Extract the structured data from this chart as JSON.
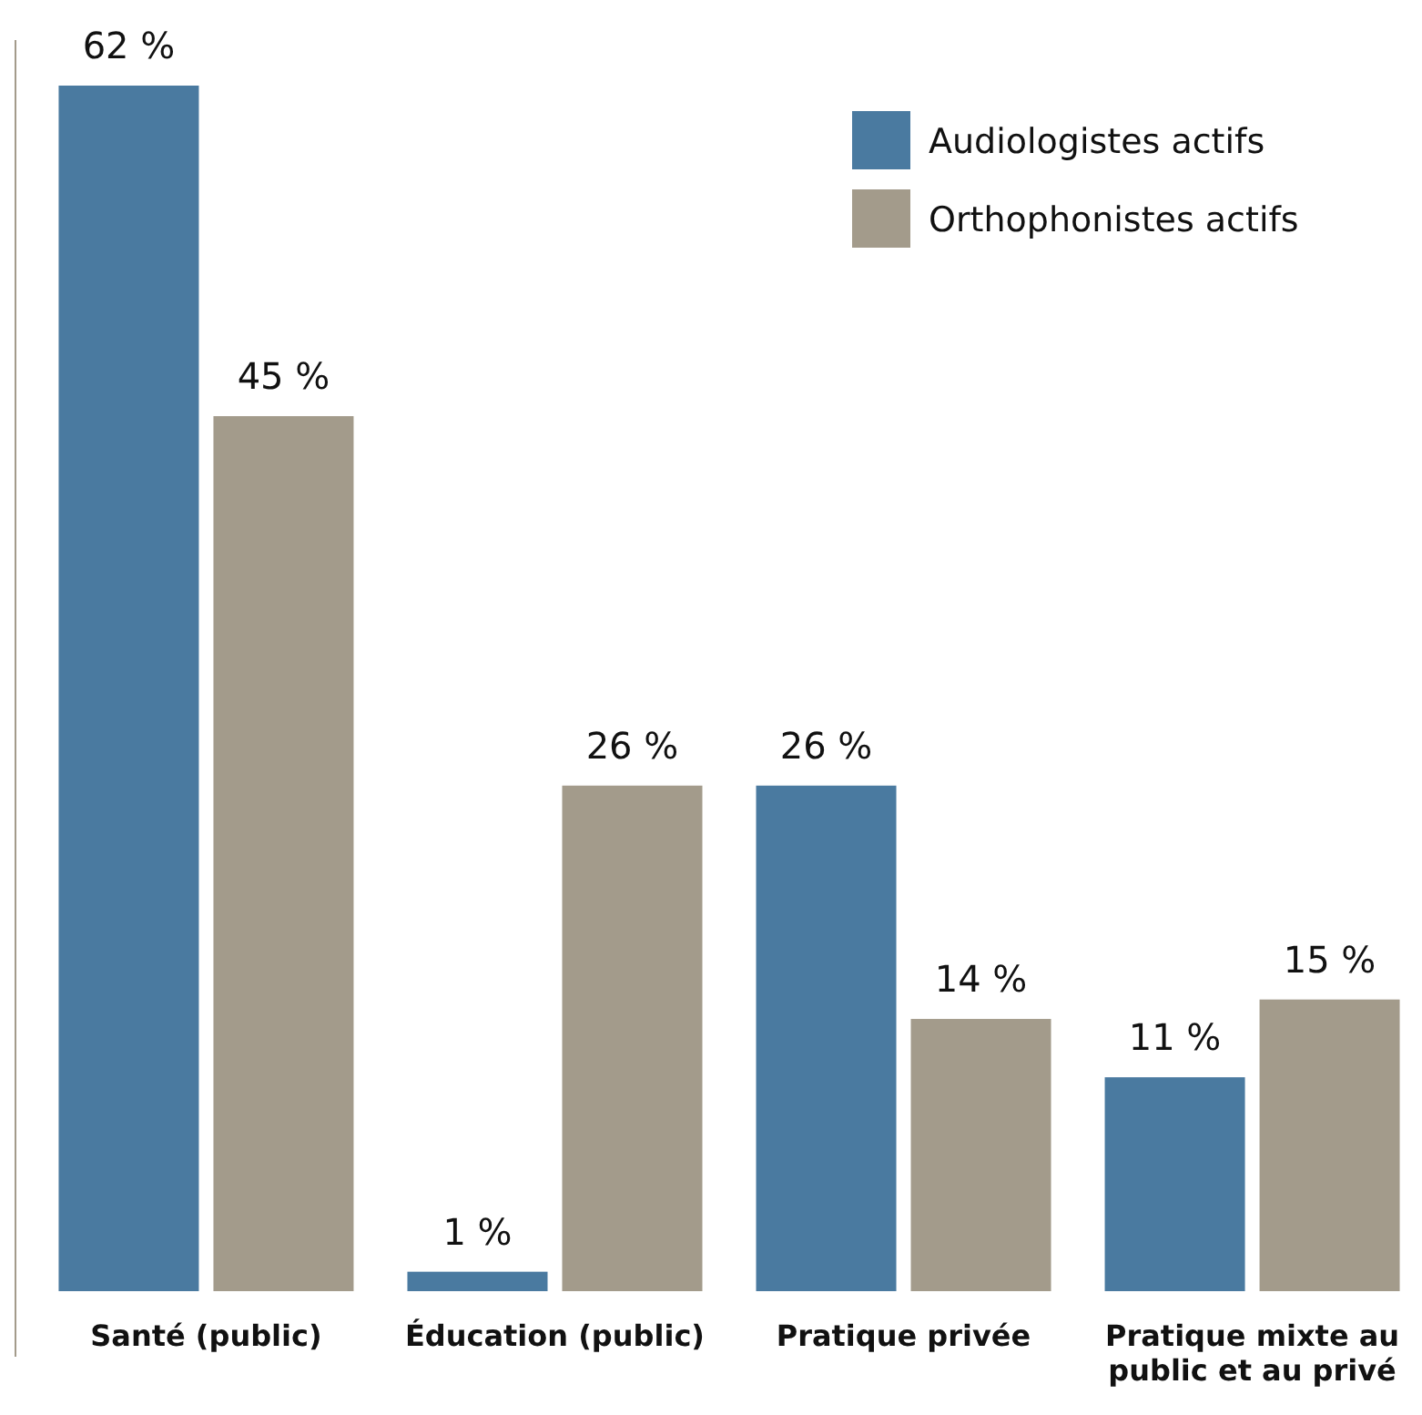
{
  "chart_data": {
    "type": "bar",
    "categories": [
      "Santé (public)",
      "Éducation (public)",
      "Pratique privée",
      "Pratique mixte au public et au privé"
    ],
    "series": [
      {
        "name": "Audiologistes actifs",
        "color": "#4a7aa0",
        "values": [
          62,
          1,
          26,
          11
        ],
        "value_labels": [
          "62 %",
          "1 %",
          "26 %",
          "11 %"
        ]
      },
      {
        "name": "Orthophonistes actifs",
        "color": "#a39b8b",
        "values": [
          45,
          26,
          14,
          15
        ],
        "value_labels": [
          "45 %",
          "26 %",
          "14 %",
          "15 %"
        ]
      }
    ],
    "legend": "top right"
  }
}
